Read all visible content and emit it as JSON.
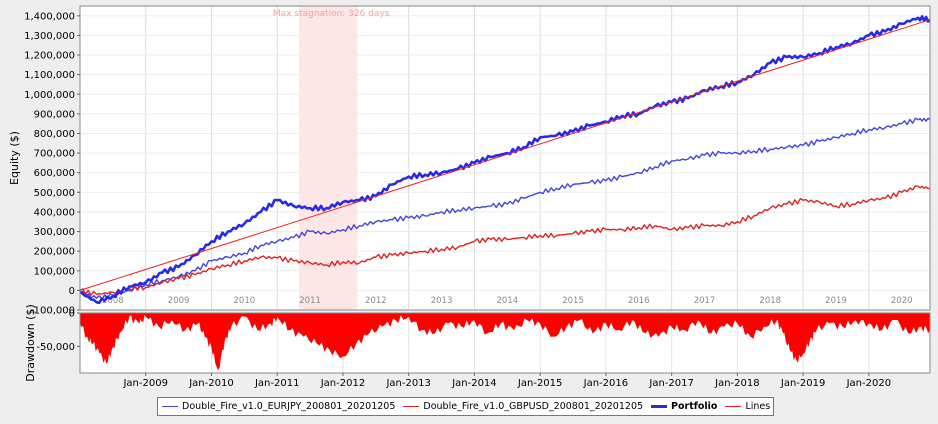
{
  "chart_data": [
    {
      "type": "line",
      "title": "",
      "ylabel": "Equity ($)",
      "ylim": [
        -100000,
        1450000
      ],
      "yticks": [
        -100000,
        0,
        100000,
        200000,
        300000,
        400000,
        500000,
        600000,
        700000,
        800000,
        900000,
        1000000,
        1100000,
        1200000,
        1300000,
        1400000
      ],
      "ytick_labels": [
        "-100,000",
        "0",
        "100,000",
        "200,000",
        "300,000",
        "400,000",
        "500,000",
        "600,000",
        "700,000",
        "800,000",
        "900,000",
        "1,000,000",
        "1,100,000",
        "1,200,000",
        "1,300,000",
        "1,400,000"
      ],
      "xlim": [
        2008.0,
        2020.93
      ],
      "year_labels": [
        {
          "x": 2008.5,
          "label": "2008"
        },
        {
          "x": 2009.5,
          "label": "2009"
        },
        {
          "x": 2010.5,
          "label": "2010"
        },
        {
          "x": 2011.5,
          "label": "2011"
        },
        {
          "x": 2012.5,
          "label": "2012"
        },
        {
          "x": 2013.5,
          "label": "2013"
        },
        {
          "x": 2014.5,
          "label": "2014"
        },
        {
          "x": 2015.5,
          "label": "2015"
        },
        {
          "x": 2016.5,
          "label": "2016"
        },
        {
          "x": 2017.5,
          "label": "2017"
        },
        {
          "x": 2018.5,
          "label": "2018"
        },
        {
          "x": 2019.5,
          "label": "2019"
        },
        {
          "x": 2020.5,
          "label": "2020"
        }
      ],
      "stagnation": {
        "label": "Max stagnation: 326 days",
        "x_start": 2011.33,
        "x_end": 2012.22
      },
      "legend_position": "bottom",
      "series": [
        {
          "name": "Double_Fire_v1.0_EURJPY_200801_20201205",
          "color": "#4444dd",
          "width": 1.4,
          "x": [
            2008.0,
            2008.25,
            2008.5,
            2008.75,
            2009.0,
            2009.25,
            2009.5,
            2009.75,
            2010.0,
            2010.25,
            2010.5,
            2010.75,
            2011.0,
            2011.25,
            2011.5,
            2011.75,
            2012.0,
            2012.25,
            2012.5,
            2012.75,
            2013.0,
            2013.25,
            2013.5,
            2013.75,
            2014.0,
            2014.25,
            2014.5,
            2014.75,
            2015.0,
            2015.25,
            2015.5,
            2015.75,
            2016.0,
            2016.25,
            2016.5,
            2016.75,
            2017.0,
            2017.25,
            2017.5,
            2017.75,
            2018.0,
            2018.25,
            2018.5,
            2018.75,
            2019.0,
            2019.25,
            2019.5,
            2019.75,
            2020.0,
            2020.25,
            2020.5,
            2020.75,
            2020.93
          ],
          "y": [
            -10000,
            -40000,
            -25000,
            0,
            30000,
            50000,
            70000,
            100000,
            150000,
            170000,
            190000,
            230000,
            250000,
            270000,
            300000,
            290000,
            310000,
            330000,
            350000,
            360000,
            370000,
            380000,
            400000,
            410000,
            420000,
            430000,
            440000,
            470000,
            500000,
            520000,
            540000,
            550000,
            560000,
            580000,
            600000,
            630000,
            660000,
            670000,
            690000,
            700000,
            700000,
            710000,
            720000,
            730000,
            740000,
            760000,
            780000,
            800000,
            820000,
            830000,
            850000,
            870000,
            870000
          ]
        },
        {
          "name": "Double_Fire_v1.0_GBPUSD_200801_20201205",
          "color": "#dd2222",
          "width": 1.4,
          "x": [
            2008.0,
            2008.25,
            2008.5,
            2008.75,
            2009.0,
            2009.25,
            2009.5,
            2009.75,
            2010.0,
            2010.25,
            2010.5,
            2010.75,
            2011.0,
            2011.25,
            2011.5,
            2011.75,
            2012.0,
            2012.25,
            2012.5,
            2012.75,
            2013.0,
            2013.25,
            2013.5,
            2013.75,
            2014.0,
            2014.25,
            2014.5,
            2014.75,
            2015.0,
            2015.25,
            2015.5,
            2015.75,
            2016.0,
            2016.25,
            2016.5,
            2016.75,
            2017.0,
            2017.25,
            2017.5,
            2017.75,
            2018.0,
            2018.25,
            2018.5,
            2018.75,
            2019.0,
            2019.25,
            2019.5,
            2019.75,
            2020.0,
            2020.25,
            2020.5,
            2020.75,
            2020.93
          ],
          "y": [
            0,
            -20000,
            -10000,
            10000,
            15000,
            40000,
            60000,
            80000,
            110000,
            130000,
            150000,
            170000,
            165000,
            150000,
            140000,
            130000,
            145000,
            140000,
            170000,
            180000,
            190000,
            200000,
            210000,
            220000,
            250000,
            260000,
            260000,
            270000,
            280000,
            280000,
            290000,
            300000,
            310000,
            310000,
            320000,
            330000,
            310000,
            320000,
            330000,
            330000,
            350000,
            380000,
            420000,
            440000,
            460000,
            450000,
            430000,
            440000,
            460000,
            470000,
            500000,
            530000,
            520000
          ]
        },
        {
          "name": "Portfolio",
          "color": "#2a2ae6",
          "width": 2.6,
          "x": [
            2008.0,
            2008.25,
            2008.5,
            2008.75,
            2009.0,
            2009.25,
            2009.5,
            2009.75,
            2010.0,
            2010.25,
            2010.5,
            2010.75,
            2011.0,
            2011.25,
            2011.5,
            2011.75,
            2012.0,
            2012.25,
            2012.5,
            2012.75,
            2013.0,
            2013.25,
            2013.5,
            2013.75,
            2014.0,
            2014.25,
            2014.5,
            2014.75,
            2015.0,
            2015.25,
            2015.5,
            2015.75,
            2016.0,
            2016.25,
            2016.5,
            2016.75,
            2017.0,
            2017.25,
            2017.5,
            2017.75,
            2018.0,
            2018.25,
            2018.5,
            2018.75,
            2019.0,
            2019.25,
            2019.5,
            2019.75,
            2020.0,
            2020.25,
            2020.5,
            2020.75,
            2020.93
          ],
          "y": [
            -10000,
            -60000,
            -30000,
            20000,
            40000,
            90000,
            120000,
            180000,
            250000,
            300000,
            340000,
            400000,
            460000,
            430000,
            420000,
            420000,
            450000,
            460000,
            480000,
            540000,
            580000,
            590000,
            600000,
            620000,
            650000,
            680000,
            700000,
            730000,
            780000,
            790000,
            810000,
            840000,
            860000,
            890000,
            900000,
            940000,
            960000,
            980000,
            1020000,
            1040000,
            1060000,
            1100000,
            1160000,
            1190000,
            1190000,
            1210000,
            1240000,
            1260000,
            1300000,
            1320000,
            1360000,
            1390000,
            1380000
          ]
        },
        {
          "name": "Lines",
          "color": "#ee2222",
          "width": 1.0,
          "x": [
            2008.0,
            2020.93
          ],
          "y": [
            0,
            1380000
          ]
        }
      ]
    },
    {
      "type": "area",
      "title": "",
      "ylabel": "Drawdown ($)",
      "ylim": [
        -90000,
        0
      ],
      "yticks": [
        0,
        -50000
      ],
      "ytick_labels": [
        "0",
        "-50,000"
      ],
      "xlim": [
        2008.0,
        2020.93
      ],
      "color": "#ff0000",
      "x_tick_labels": [
        {
          "x": 2009.0,
          "label": "Jan-2009"
        },
        {
          "x": 2010.0,
          "label": "Jan-2010"
        },
        {
          "x": 2011.0,
          "label": "Jan-2011"
        },
        {
          "x": 2012.0,
          "label": "Jan-2012"
        },
        {
          "x": 2013.0,
          "label": "Jan-2013"
        },
        {
          "x": 2014.0,
          "label": "Jan-2014"
        },
        {
          "x": 2015.0,
          "label": "Jan-2015"
        },
        {
          "x": 2016.0,
          "label": "Jan-2016"
        },
        {
          "x": 2017.0,
          "label": "Jan-2017"
        },
        {
          "x": 2018.0,
          "label": "Jan-2018"
        },
        {
          "x": 2019.0,
          "label": "Jan-2019"
        },
        {
          "x": 2020.0,
          "label": "Jan-2020"
        }
      ],
      "x": [
        2008.0,
        2008.1,
        2008.2,
        2008.3,
        2008.4,
        2008.5,
        2008.6,
        2008.75,
        2008.9,
        2009.0,
        2009.2,
        2009.4,
        2009.6,
        2009.8,
        2009.9,
        2010.0,
        2010.1,
        2010.2,
        2010.3,
        2010.5,
        2010.7,
        2010.9,
        2011.0,
        2011.2,
        2011.4,
        2011.6,
        2011.8,
        2012.0,
        2012.2,
        2012.4,
        2012.6,
        2012.8,
        2013.0,
        2013.2,
        2013.4,
        2013.6,
        2013.8,
        2014.0,
        2014.2,
        2014.4,
        2014.6,
        2014.8,
        2015.0,
        2015.2,
        2015.4,
        2015.6,
        2015.8,
        2016.0,
        2016.2,
        2016.4,
        2016.6,
        2016.8,
        2017.0,
        2017.2,
        2017.4,
        2017.6,
        2017.8,
        2018.0,
        2018.2,
        2018.4,
        2018.6,
        2018.7,
        2018.8,
        2018.9,
        2019.0,
        2019.1,
        2019.2,
        2019.4,
        2019.6,
        2019.8,
        2020.0,
        2020.2,
        2020.4,
        2020.6,
        2020.8,
        2020.93
      ],
      "y": [
        -10000,
        -35000,
        -45000,
        -60000,
        -75000,
        -50000,
        -30000,
        -5000,
        -15000,
        -5000,
        -20000,
        -10000,
        -25000,
        -15000,
        -35000,
        -50000,
        -85000,
        -40000,
        -20000,
        -5000,
        -25000,
        -15000,
        -5000,
        -25000,
        -35000,
        -45000,
        -55000,
        -65000,
        -45000,
        -30000,
        -20000,
        -10000,
        -5000,
        -25000,
        -30000,
        -15000,
        -20000,
        -10000,
        -30000,
        -15000,
        -25000,
        -10000,
        -15000,
        -35000,
        -20000,
        -10000,
        -30000,
        -15000,
        -25000,
        -10000,
        -30000,
        -35000,
        -20000,
        -25000,
        -10000,
        -30000,
        -20000,
        -15000,
        -35000,
        -20000,
        -10000,
        -30000,
        -55000,
        -70000,
        -60000,
        -40000,
        -25000,
        -15000,
        -20000,
        -10000,
        -15000,
        -25000,
        -10000,
        -30000,
        -20000,
        -25000
      ]
    }
  ]
}
